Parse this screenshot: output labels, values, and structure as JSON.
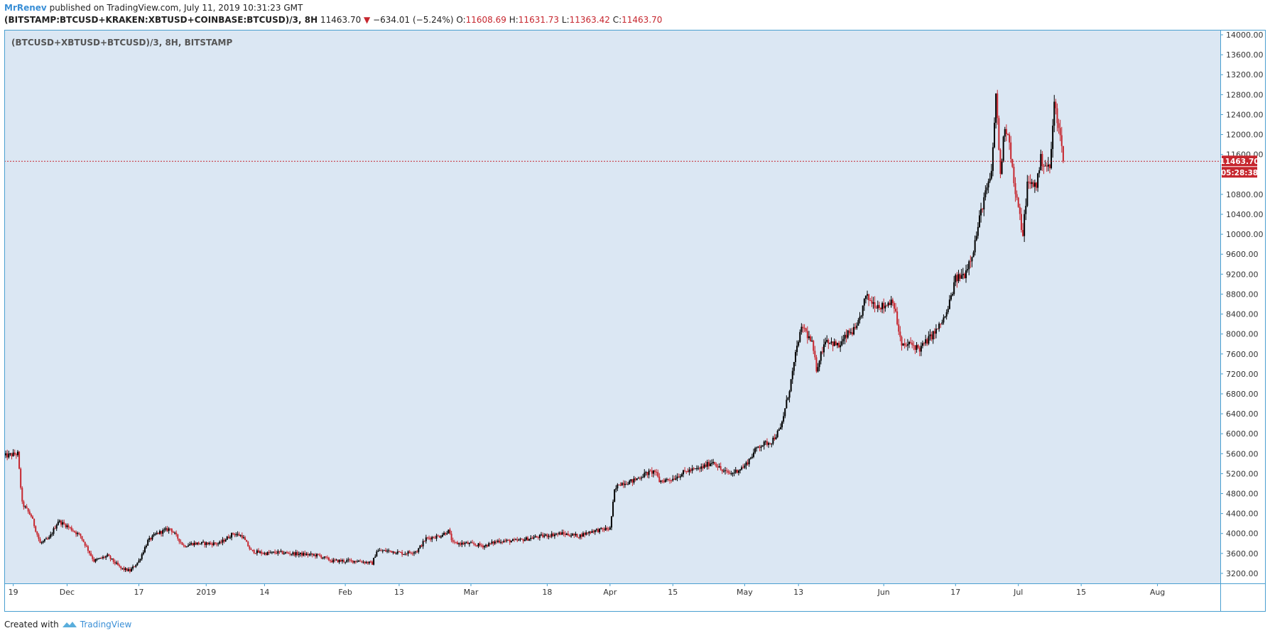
{
  "header": {
    "author": "MrRenev",
    "published_text": "published on TradingView.com, July 11, 2019 10:31:23 GMT",
    "symbol": "(BITSTAMP:BTCUSD+KRAKEN:XBTUSD+COINBASE:BTCUSD)/3, 8H",
    "last": "11463.70",
    "change": "−634.01 (−5.24%)",
    "o_label": "O:",
    "o_value": "11608.69",
    "h_label": "H:",
    "h_value": "11631.73",
    "l_label": "L:",
    "l_value": "11363.42",
    "c_label": "C:",
    "c_value": "11463.70"
  },
  "legend": "(BTCUSD+XBTUSD+BTCUSD)/3, 8H, BITSTAMP",
  "footer": {
    "created_with": "Created with",
    "brand": "TradingView"
  },
  "colors": {
    "background": "#dbe7f3",
    "up": "#000000",
    "down": "#c6262e",
    "border": "#4a9fd0",
    "price_tag": "#c6262e"
  },
  "chart_data": {
    "type": "candlestick",
    "timeframe": "8H",
    "ylim": [
      3000,
      14100
    ],
    "y_ticks": [
      "14000.00",
      "13600.00",
      "13200.00",
      "12800.00",
      "12400.00",
      "12000.00",
      "11600.00",
      "10800.00",
      "10400.00",
      "10000.00",
      "9600.00",
      "9200.00",
      "8800.00",
      "8400.00",
      "8000.00",
      "7600.00",
      "7200.00",
      "6800.00",
      "6400.00",
      "6000.00",
      "5600.00",
      "5200.00",
      "4800.00",
      "4400.00",
      "4000.00",
      "3600.00",
      "3200.00"
    ],
    "x_ticks": [
      {
        "label": "19",
        "date": "2018-11-19"
      },
      {
        "label": "Dec",
        "date": "2018-12-01"
      },
      {
        "label": "17",
        "date": "2018-12-17"
      },
      {
        "label": "2019",
        "date": "2019-01-01"
      },
      {
        "label": "14",
        "date": "2019-01-14"
      },
      {
        "label": "Feb",
        "date": "2019-02-01"
      },
      {
        "label": "13",
        "date": "2019-02-13"
      },
      {
        "label": "Mar",
        "date": "2019-03-01"
      },
      {
        "label": "18",
        "date": "2019-03-18"
      },
      {
        "label": "Apr",
        "date": "2019-04-01"
      },
      {
        "label": "15",
        "date": "2019-04-15"
      },
      {
        "label": "May",
        "date": "2019-05-01"
      },
      {
        "label": "13",
        "date": "2019-05-13"
      },
      {
        "label": "Jun",
        "date": "2019-06-01"
      },
      {
        "label": "17",
        "date": "2019-06-17"
      },
      {
        "label": "Jul",
        "date": "2019-07-01"
      },
      {
        "label": "15",
        "date": "2019-07-15"
      },
      {
        "label": "Aug",
        "date": "2019-08-01"
      }
    ],
    "xlim": [
      "2018-11-17",
      "2019-08-15"
    ],
    "last_price": 11463.7,
    "last_price_label": "11463.70",
    "countdown_label": "05:28:38",
    "close_path": [
      [
        "2018-11-17",
        5550
      ],
      [
        "2018-11-20",
        5600
      ],
      [
        "2018-11-21",
        4600
      ],
      [
        "2018-11-23",
        4350
      ],
      [
        "2018-11-25",
        3800
      ],
      [
        "2018-11-27",
        3900
      ],
      [
        "2018-11-29",
        4250
      ],
      [
        "2018-12-01",
        4150
      ],
      [
        "2018-12-04",
        3950
      ],
      [
        "2018-12-07",
        3450
      ],
      [
        "2018-12-10",
        3550
      ],
      [
        "2018-12-13",
        3300
      ],
      [
        "2018-12-15",
        3250
      ],
      [
        "2018-12-17",
        3450
      ],
      [
        "2018-12-19",
        3850
      ],
      [
        "2018-12-21",
        4000
      ],
      [
        "2018-12-24",
        4100
      ],
      [
        "2018-12-27",
        3750
      ],
      [
        "2018-12-29",
        3800
      ],
      [
        "2019-01-01",
        3800
      ],
      [
        "2019-01-04",
        3800
      ],
      [
        "2019-01-07",
        4000
      ],
      [
        "2019-01-09",
        3950
      ],
      [
        "2019-01-11",
        3650
      ],
      [
        "2019-01-14",
        3600
      ],
      [
        "2019-01-17",
        3620
      ],
      [
        "2019-01-20",
        3600
      ],
      [
        "2019-01-23",
        3580
      ],
      [
        "2019-01-26",
        3560
      ],
      [
        "2019-01-29",
        3450
      ],
      [
        "2019-02-01",
        3450
      ],
      [
        "2019-02-04",
        3450
      ],
      [
        "2019-02-07",
        3400
      ],
      [
        "2019-02-08",
        3650
      ],
      [
        "2019-02-11",
        3650
      ],
      [
        "2019-02-14",
        3600
      ],
      [
        "2019-02-17",
        3650
      ],
      [
        "2019-02-19",
        3900
      ],
      [
        "2019-02-22",
        3950
      ],
      [
        "2019-02-24",
        4050
      ],
      [
        "2019-02-25",
        3800
      ],
      [
        "2019-02-28",
        3800
      ],
      [
        "2019-03-04",
        3750
      ],
      [
        "2019-03-07",
        3850
      ],
      [
        "2019-03-11",
        3850
      ],
      [
        "2019-03-14",
        3900
      ],
      [
        "2019-03-17",
        3950
      ],
      [
        "2019-03-21",
        4000
      ],
      [
        "2019-03-25",
        3950
      ],
      [
        "2019-03-28",
        4050
      ],
      [
        "2019-04-01",
        4100
      ],
      [
        "2019-04-02",
        4850
      ],
      [
        "2019-04-03",
        5000
      ],
      [
        "2019-04-06",
        5050
      ],
      [
        "2019-04-09",
        5200
      ],
      [
        "2019-04-11",
        5250
      ],
      [
        "2019-04-12",
        5050
      ],
      [
        "2019-04-15",
        5100
      ],
      [
        "2019-04-18",
        5250
      ],
      [
        "2019-04-21",
        5300
      ],
      [
        "2019-04-24",
        5450
      ],
      [
        "2019-04-26",
        5250
      ],
      [
        "2019-04-28",
        5200
      ],
      [
        "2019-05-01",
        5350
      ],
      [
        "2019-05-04",
        5750
      ],
      [
        "2019-05-07",
        5850
      ],
      [
        "2019-05-09",
        6100
      ],
      [
        "2019-05-11",
        6900
      ],
      [
        "2019-05-13",
        7900
      ],
      [
        "2019-05-14",
        8150
      ],
      [
        "2019-05-16",
        7800
      ],
      [
        "2019-05-17",
        7300
      ],
      [
        "2019-05-19",
        7900
      ],
      [
        "2019-05-22",
        7750
      ],
      [
        "2019-05-24",
        8000
      ],
      [
        "2019-05-26",
        8100
      ],
      [
        "2019-05-28",
        8750
      ],
      [
        "2019-05-30",
        8600
      ],
      [
        "2019-06-01",
        8550
      ],
      [
        "2019-06-03",
        8700
      ],
      [
        "2019-06-05",
        7750
      ],
      [
        "2019-06-07",
        7800
      ],
      [
        "2019-06-09",
        7700
      ],
      [
        "2019-06-11",
        7900
      ],
      [
        "2019-06-13",
        8100
      ],
      [
        "2019-06-15",
        8400
      ],
      [
        "2019-06-17",
        9100
      ],
      [
        "2019-06-19",
        9200
      ],
      [
        "2019-06-21",
        9700
      ],
      [
        "2019-06-23",
        10600
      ],
      [
        "2019-06-25",
        11200
      ],
      [
        "2019-06-26",
        12800
      ],
      [
        "2019-06-27",
        11200
      ],
      [
        "2019-06-28",
        12200
      ],
      [
        "2019-06-29",
        11900
      ],
      [
        "2019-06-30",
        11000
      ],
      [
        "2019-07-01",
        10500
      ],
      [
        "2019-07-02",
        10000
      ],
      [
        "2019-07-03",
        11000
      ],
      [
        "2019-07-05",
        11000
      ],
      [
        "2019-07-06",
        11500
      ],
      [
        "2019-07-08",
        11300
      ],
      [
        "2019-07-09",
        12600
      ],
      [
        "2019-07-10",
        12200
      ],
      [
        "2019-07-11",
        11463.7
      ]
    ]
  }
}
